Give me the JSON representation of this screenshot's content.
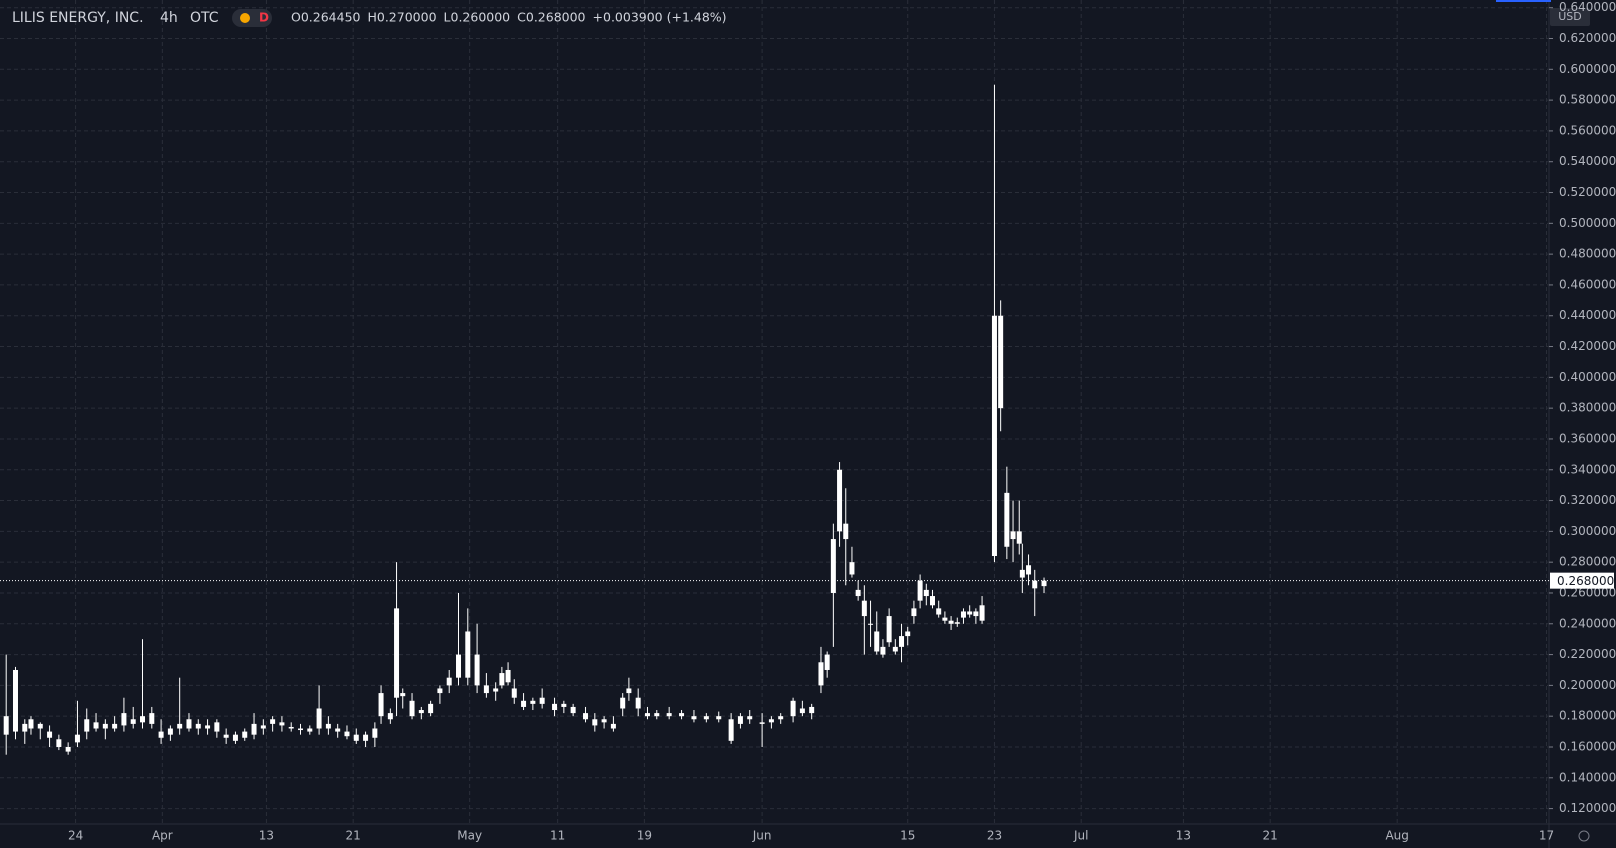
{
  "chart_data": {
    "type": "candlestick",
    "title": "LILIS ENERGY, INC.",
    "interval": "4h",
    "exchange": "OTC",
    "badge": "D",
    "ohlc_legend": [
      "O0.264450",
      "H0.270000",
      "L0.260000",
      "C0.268000",
      "+0.003900 (+1.48%)"
    ],
    "currency": "USD",
    "last_price": {
      "value": 0.268,
      "label": "0.268000"
    },
    "color": "#ffffff",
    "grid": true,
    "xlim": [
      0,
      250
    ],
    "xticks": [
      {
        "value": 12.2,
        "label": "24"
      },
      {
        "value": 26.2,
        "label": "Apr"
      },
      {
        "value": 43,
        "label": "13"
      },
      {
        "value": 57,
        "label": "21"
      },
      {
        "value": 75.8,
        "label": "May"
      },
      {
        "value": 90,
        "label": "11"
      },
      {
        "value": 104,
        "label": "19"
      },
      {
        "value": 123,
        "label": "Jun"
      },
      {
        "value": 146.5,
        "label": "15"
      },
      {
        "value": 160.5,
        "label": "23"
      },
      {
        "value": 174.5,
        "label": "Jul"
      },
      {
        "value": 191,
        "label": "13"
      },
      {
        "value": 205,
        "label": "21"
      },
      {
        "value": 225.5,
        "label": "Aug"
      },
      {
        "value": 249.6,
        "label": "17"
      }
    ],
    "ylim": [
      0.11,
      0.645
    ],
    "yticks": [
      {
        "value": 0.12,
        "label": "0.120000"
      },
      {
        "value": 0.14,
        "label": "0.140000"
      },
      {
        "value": 0.16,
        "label": "0.160000"
      },
      {
        "value": 0.18,
        "label": "0.180000"
      },
      {
        "value": 0.2,
        "label": "0.200000"
      },
      {
        "value": 0.22,
        "label": "0.220000"
      },
      {
        "value": 0.24,
        "label": "0.240000"
      },
      {
        "value": 0.26,
        "label": "0.260000"
      },
      {
        "value": 0.28,
        "label": "0.280000"
      },
      {
        "value": 0.3,
        "label": "0.300000"
      },
      {
        "value": 0.32,
        "label": "0.320000"
      },
      {
        "value": 0.34,
        "label": "0.340000"
      },
      {
        "value": 0.36,
        "label": "0.360000"
      },
      {
        "value": 0.38,
        "label": "0.380000"
      },
      {
        "value": 0.4,
        "label": "0.400000"
      },
      {
        "value": 0.42,
        "label": "0.420000"
      },
      {
        "value": 0.44,
        "label": "0.440000"
      },
      {
        "value": 0.46,
        "label": "0.460000"
      },
      {
        "value": 0.48,
        "label": "0.480000"
      },
      {
        "value": 0.5,
        "label": "0.500000"
      },
      {
        "value": 0.52,
        "label": "0.520000"
      },
      {
        "value": 0.54,
        "label": "0.540000"
      },
      {
        "value": 0.56,
        "label": "0.560000"
      },
      {
        "value": 0.58,
        "label": "0.580000"
      },
      {
        "value": 0.6,
        "label": "0.600000"
      },
      {
        "value": 0.62,
        "label": "0.620000"
      },
      {
        "value": 0.64,
        "label": "0.640000"
      }
    ],
    "x": [
      1,
      2.5,
      4,
      5,
      6.5,
      8,
      9.5,
      11,
      12.5,
      14,
      15.5,
      17,
      18.5,
      20,
      21.5,
      23,
      24.5,
      26,
      27.5,
      29,
      30.5,
      32,
      33.5,
      35,
      36.5,
      38,
      39.5,
      41,
      42.5,
      44,
      45.5,
      47,
      48.5,
      50,
      51.5,
      53,
      54.5,
      56,
      57.5,
      59,
      60.5,
      61.5,
      63,
      64,
      65,
      66.5,
      68,
      69.5,
      71,
      72.5,
      74,
      75.5,
      77,
      78.5,
      80,
      81,
      82,
      83,
      84.5,
      86,
      87.5,
      89.5,
      91,
      92.5,
      94.5,
      96,
      97.5,
      99,
      100.5,
      101.5,
      103,
      104.5,
      106,
      108,
      110,
      112,
      114,
      116,
      118,
      119.5,
      121,
      123,
      124.5,
      126,
      128,
      129.5,
      131,
      132.5,
      133.5,
      134.5,
      135.5,
      136.5,
      137.5,
      138.5,
      139.5,
      140.5,
      141.5,
      142.5,
      143.5,
      144.5,
      145.5,
      146.5,
      147.5,
      148.5,
      149.5,
      150.5,
      151.5,
      152.5,
      153.5,
      154.5,
      155.5,
      156.5,
      157.5,
      158.5,
      160.5,
      161.5,
      162.5,
      163.5,
      164.5,
      165,
      166,
      167,
      168.5
    ],
    "open": [
      0.18,
      0.17,
      0.175,
      0.178,
      0.172,
      0.17,
      0.165,
      0.16,
      0.163,
      0.17,
      0.176,
      0.172,
      0.175,
      0.174,
      0.178,
      0.176,
      0.182,
      0.17,
      0.168,
      0.172,
      0.178,
      0.172,
      0.174,
      0.176,
      0.168,
      0.164,
      0.166,
      0.168,
      0.172,
      0.175,
      0.176,
      0.173,
      0.172,
      0.17,
      0.172,
      0.172,
      0.172,
      0.17,
      0.168,
      0.164,
      0.166,
      0.18,
      0.178,
      0.192,
      0.195,
      0.19,
      0.182,
      0.182,
      0.195,
      0.2,
      0.205,
      0.205,
      0.22,
      0.2,
      0.198,
      0.2,
      0.21,
      0.198,
      0.19,
      0.188,
      0.192,
      0.188,
      0.186,
      0.186,
      0.182,
      0.178,
      0.176,
      0.175,
      0.185,
      0.195,
      0.192,
      0.182,
      0.18,
      0.182,
      0.18,
      0.18,
      0.178,
      0.18,
      0.178,
      0.175,
      0.18,
      0.175,
      0.176,
      0.178,
      0.18,
      0.185,
      0.182,
      0.2,
      0.21,
      0.26,
      0.3,
      0.305,
      0.28,
      0.262,
      0.255,
      0.24,
      0.235,
      0.225,
      0.245,
      0.225,
      0.225,
      0.232,
      0.245,
      0.255,
      0.262,
      0.258,
      0.25,
      0.244,
      0.242,
      0.24,
      0.244,
      0.248,
      0.245,
      0.242,
      0.284,
      0.44,
      0.325,
      0.295,
      0.3,
      0.27,
      0.278,
      0.268,
      0.26445
    ],
    "high": [
      0.22,
      0.212,
      0.178,
      0.18,
      0.176,
      0.174,
      0.168,
      0.163,
      0.19,
      0.185,
      0.182,
      0.178,
      0.18,
      0.192,
      0.186,
      0.23,
      0.186,
      0.178,
      0.174,
      0.205,
      0.182,
      0.178,
      0.178,
      0.178,
      0.172,
      0.17,
      0.172,
      0.182,
      0.178,
      0.18,
      0.18,
      0.176,
      0.175,
      0.174,
      0.2,
      0.18,
      0.175,
      0.174,
      0.172,
      0.17,
      0.176,
      0.2,
      0.185,
      0.28,
      0.198,
      0.195,
      0.186,
      0.19,
      0.2,
      0.21,
      0.26,
      0.25,
      0.24,
      0.208,
      0.202,
      0.212,
      0.215,
      0.204,
      0.195,
      0.192,
      0.198,
      0.192,
      0.19,
      0.188,
      0.186,
      0.182,
      0.18,
      0.18,
      0.195,
      0.205,
      0.198,
      0.186,
      0.184,
      0.186,
      0.184,
      0.184,
      0.182,
      0.183,
      0.182,
      0.182,
      0.184,
      0.182,
      0.18,
      0.182,
      0.192,
      0.19,
      0.188,
      0.225,
      0.222,
      0.305,
      0.345,
      0.328,
      0.29,
      0.268,
      0.265,
      0.255,
      0.248,
      0.23,
      0.25,
      0.23,
      0.24,
      0.238,
      0.255,
      0.272,
      0.266,
      0.262,
      0.255,
      0.248,
      0.245,
      0.244,
      0.25,
      0.252,
      0.25,
      0.258,
      0.59,
      0.45,
      0.342,
      0.32,
      0.32,
      0.292,
      0.285,
      0.275,
      0.27
    ],
    "low": [
      0.155,
      0.165,
      0.162,
      0.168,
      0.165,
      0.16,
      0.158,
      0.155,
      0.16,
      0.165,
      0.17,
      0.165,
      0.17,
      0.17,
      0.172,
      0.172,
      0.172,
      0.162,
      0.164,
      0.168,
      0.17,
      0.168,
      0.168,
      0.166,
      0.162,
      0.162,
      0.164,
      0.165,
      0.168,
      0.17,
      0.17,
      0.17,
      0.168,
      0.168,
      0.168,
      0.168,
      0.166,
      0.165,
      0.162,
      0.16,
      0.16,
      0.175,
      0.175,
      0.18,
      0.185,
      0.178,
      0.178,
      0.18,
      0.188,
      0.195,
      0.2,
      0.2,
      0.195,
      0.192,
      0.19,
      0.198,
      0.2,
      0.188,
      0.184,
      0.184,
      0.185,
      0.18,
      0.182,
      0.18,
      0.176,
      0.17,
      0.172,
      0.17,
      0.18,
      0.19,
      0.18,
      0.178,
      0.178,
      0.178,
      0.178,
      0.176,
      0.176,
      0.176,
      0.162,
      0.172,
      0.175,
      0.16,
      0.172,
      0.175,
      0.176,
      0.18,
      0.178,
      0.195,
      0.205,
      0.225,
      0.29,
      0.265,
      0.27,
      0.255,
      0.22,
      0.225,
      0.22,
      0.218,
      0.225,
      0.22,
      0.215,
      0.226,
      0.24,
      0.25,
      0.252,
      0.25,
      0.244,
      0.24,
      0.236,
      0.238,
      0.24,
      0.244,
      0.24,
      0.24,
      0.28,
      0.365,
      0.282,
      0.28,
      0.285,
      0.26,
      0.265,
      0.245,
      0.26
    ],
    "close": [
      0.168,
      0.21,
      0.17,
      0.172,
      0.175,
      0.166,
      0.16,
      0.157,
      0.168,
      0.178,
      0.172,
      0.175,
      0.172,
      0.182,
      0.175,
      0.18,
      0.175,
      0.166,
      0.172,
      0.175,
      0.172,
      0.175,
      0.172,
      0.17,
      0.166,
      0.168,
      0.17,
      0.175,
      0.174,
      0.178,
      0.174,
      0.172,
      0.171,
      0.172,
      0.185,
      0.175,
      0.17,
      0.167,
      0.164,
      0.168,
      0.172,
      0.195,
      0.182,
      0.25,
      0.193,
      0.18,
      0.184,
      0.188,
      0.198,
      0.205,
      0.22,
      0.235,
      0.2,
      0.195,
      0.196,
      0.208,
      0.202,
      0.192,
      0.186,
      0.19,
      0.188,
      0.184,
      0.188,
      0.182,
      0.178,
      0.174,
      0.178,
      0.172,
      0.192,
      0.198,
      0.185,
      0.18,
      0.182,
      0.18,
      0.182,
      0.178,
      0.18,
      0.178,
      0.164,
      0.18,
      0.178,
      0.176,
      0.178,
      0.18,
      0.19,
      0.182,
      0.186,
      0.215,
      0.22,
      0.295,
      0.34,
      0.295,
      0.272,
      0.258,
      0.245,
      0.24,
      0.222,
      0.22,
      0.228,
      0.222,
      0.232,
      0.235,
      0.25,
      0.268,
      0.258,
      0.252,
      0.246,
      0.242,
      0.24,
      0.241,
      0.248,
      0.246,
      0.248,
      0.252,
      0.44,
      0.38,
      0.29,
      0.3,
      0.292,
      0.275,
      0.272,
      0.263,
      0.268
    ]
  }
}
